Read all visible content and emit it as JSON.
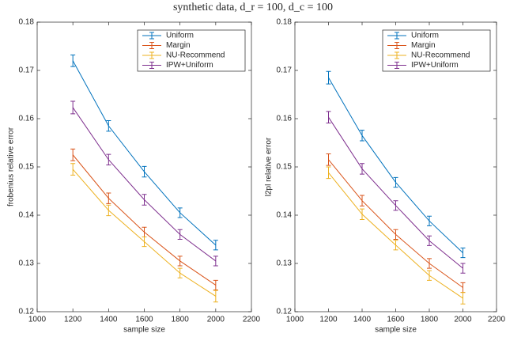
{
  "title": "synthetic data, d_r = 100, d_c = 100",
  "chart_data": [
    {
      "type": "line",
      "xlabel": "sample size",
      "ylabel": "frobenius relative error",
      "x": [
        1200,
        1400,
        1600,
        1800,
        2000
      ],
      "xlim": [
        1000,
        2200
      ],
      "xticks": [
        1000,
        1200,
        1400,
        1600,
        1800,
        2000,
        2200
      ],
      "ylim": [
        0.12,
        0.18
      ],
      "yticks": [
        0.12,
        0.13,
        0.14,
        0.15,
        0.16,
        0.17,
        0.18
      ],
      "legend": "upper right",
      "series": [
        {
          "name": "Uniform",
          "color": "#0072BD",
          "values": [
            0.172,
            0.1585,
            0.149,
            0.1405,
            0.1338
          ],
          "errors": [
            0.0012,
            0.0011,
            0.0011,
            0.001,
            0.001
          ]
        },
        {
          "name": "Margin",
          "color": "#D95319",
          "values": [
            0.1525,
            0.1435,
            0.1365,
            0.1305,
            0.1255
          ],
          "errors": [
            0.0012,
            0.0011,
            0.001,
            0.001,
            0.001
          ]
        },
        {
          "name": "NU-Recommend",
          "color": "#EDB120",
          "values": [
            0.1495,
            0.141,
            0.1345,
            0.128,
            0.1232
          ],
          "errors": [
            0.0012,
            0.0011,
            0.001,
            0.001,
            0.0012
          ]
        },
        {
          "name": "IPW+Uniform",
          "color": "#7E2F8E",
          "values": [
            0.1623,
            0.1515,
            0.1432,
            0.136,
            0.1305
          ],
          "errors": [
            0.0013,
            0.0011,
            0.0011,
            0.001,
            0.001
          ]
        }
      ]
    },
    {
      "type": "line",
      "xlabel": "sample size",
      "ylabel": "l2pl relative error",
      "x": [
        1200,
        1400,
        1600,
        1800,
        2000
      ],
      "xlim": [
        1000,
        2200
      ],
      "xticks": [
        1000,
        1200,
        1400,
        1600,
        1800,
        2000,
        2200
      ],
      "ylim": [
        0.12,
        0.18
      ],
      "yticks": [
        0.12,
        0.13,
        0.14,
        0.15,
        0.16,
        0.17,
        0.18
      ],
      "legend": "upper right",
      "series": [
        {
          "name": "Uniform",
          "color": "#0072BD",
          "values": [
            0.1685,
            0.1565,
            0.1468,
            0.1388,
            0.1322
          ],
          "errors": [
            0.0013,
            0.0011,
            0.001,
            0.001,
            0.001
          ]
        },
        {
          "name": "Margin",
          "color": "#D95319",
          "values": [
            0.1515,
            0.143,
            0.136,
            0.13,
            0.125
          ],
          "errors": [
            0.0012,
            0.0011,
            0.001,
            0.001,
            0.001
          ]
        },
        {
          "name": "NU-Recommend",
          "color": "#EDB120",
          "values": [
            0.1488,
            0.1402,
            0.1338,
            0.1275,
            0.1228
          ],
          "errors": [
            0.0012,
            0.0011,
            0.001,
            0.001,
            0.0012
          ]
        },
        {
          "name": "IPW+Uniform",
          "color": "#7E2F8E",
          "values": [
            0.1603,
            0.1496,
            0.142,
            0.1347,
            0.129
          ],
          "errors": [
            0.0012,
            0.0011,
            0.001,
            0.001,
            0.001
          ]
        }
      ]
    }
  ]
}
